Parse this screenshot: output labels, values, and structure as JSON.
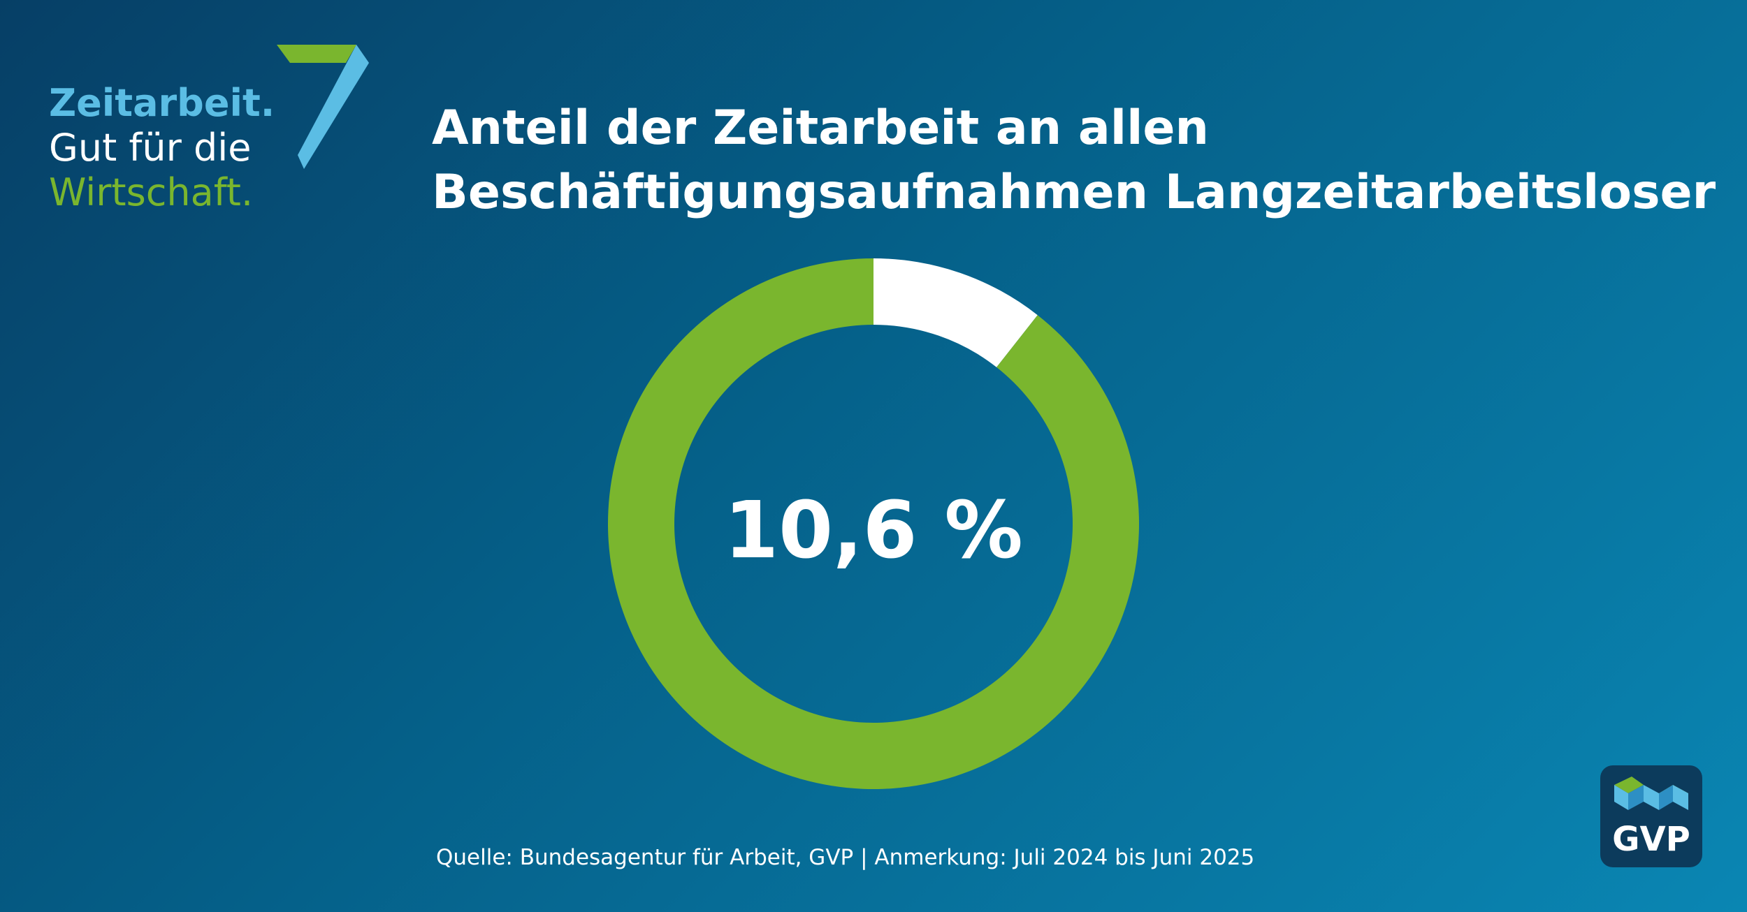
{
  "logo": {
    "line1": "Zeitarbeit.",
    "line2": "Gut für die",
    "line3": "Wirtschaft.",
    "icon": "seven-stripe-icon",
    "colors": {
      "blue": "#5bbde4",
      "white": "#ffffff",
      "green": "#7ab62e"
    }
  },
  "title_line1": "Anteil der Zeitarbeit an allen",
  "title_line2": "Beschäftigungsaufnahmen Langzeitarbeitsloser",
  "source": "Quelle: Bundesagentur für Arbeit, GVP | Anmerkung: Juli 2024 bis Juni 2025",
  "badge": {
    "label": "GVP",
    "icon": "gvp-cube-icon"
  },
  "chart_data": {
    "type": "pie",
    "style": "donut",
    "center_label": "10,6 %",
    "slices": [
      {
        "value": 10.6,
        "color": "#ffffff"
      },
      {
        "value": 89.4,
        "color": "#7ab62e"
      }
    ],
    "unit": "%",
    "legend": "none"
  }
}
